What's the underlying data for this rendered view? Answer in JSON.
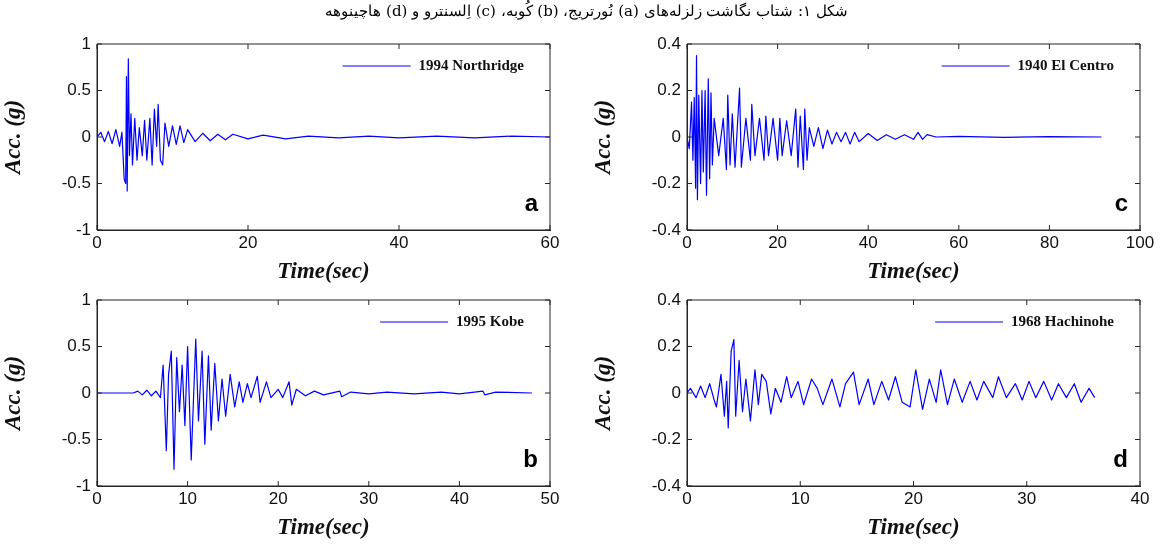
{
  "chart_data": [
    {
      "type": "line",
      "title": "شکل ۱: شتاب نگاشت زلزله‌های (a) نُورتریج، (b) کُوبه، (c) اِلسنترو و (d) هاچینوهه",
      "xlabel": "Time(sec)",
      "ylabel": "Acc. (g)",
      "xlim": [
        0,
        60
      ],
      "xticks": [
        0,
        20,
        40,
        60
      ],
      "ylim": [
        -1,
        1
      ],
      "yticks": [
        -1,
        -0.5,
        0,
        0.5,
        1
      ],
      "grid": false,
      "legend": "top right",
      "annotations": [
        "a"
      ],
      "x": [
        0,
        0.5,
        1,
        1.5,
        2,
        2.5,
        3,
        3.3,
        3.6,
        3.8,
        3.9,
        4.0,
        4.15,
        4.3,
        4.5,
        4.7,
        5,
        5.3,
        5.6,
        6,
        6.3,
        6.6,
        7,
        7.3,
        7.6,
        7.9,
        8.1,
        8.4,
        8.7,
        9,
        9.5,
        10,
        10.5,
        11,
        11.5,
        12,
        13,
        14,
        15,
        16,
        17,
        18,
        20,
        22,
        25,
        28,
        32,
        36,
        40,
        45,
        50,
        55,
        60
      ],
      "series": [
        {
          "name": "1994 Northridge",
          "color": "#0000ff",
          "values": [
            0,
            0.05,
            -0.05,
            0.06,
            -0.07,
            0.08,
            -0.1,
            0.05,
            -0.45,
            -0.5,
            0.65,
            -0.58,
            0.84,
            -0.2,
            0.25,
            -0.3,
            0.2,
            -0.25,
            0.1,
            -0.2,
            0.18,
            -0.25,
            0.2,
            -0.3,
            0.3,
            -0.1,
            0.35,
            -0.25,
            -0.3,
            0.15,
            -0.1,
            0.12,
            -0.08,
            0.12,
            -0.06,
            0.08,
            -0.05,
            0.04,
            -0.04,
            0.03,
            -0.03,
            0.03,
            -0.02,
            0.02,
            -0.02,
            0.01,
            -0.01,
            0.01,
            -0.01,
            0.01,
            -0.01,
            0.01,
            0
          ]
        }
      ]
    },
    {
      "type": "line",
      "xlabel": "Time(sec)",
      "ylabel": "Acc. (g)",
      "xlim": [
        0,
        100
      ],
      "xticks": [
        0,
        20,
        40,
        60,
        80,
        100
      ],
      "ylim": [
        -0.4,
        0.4
      ],
      "yticks": [
        -0.4,
        -0.2,
        0,
        0.2,
        0.4
      ],
      "grid": false,
      "legend": "top right",
      "annotations": [
        "c"
      ],
      "x": [
        0,
        0.5,
        1,
        1.3,
        1.6,
        1.9,
        2.1,
        2.3,
        2.6,
        3,
        3.3,
        3.6,
        4,
        4.3,
        4.7,
        5,
        5.3,
        5.6,
        6,
        7,
        8,
        8.7,
        9,
        9.5,
        10,
        10.6,
        11.6,
        12,
        13,
        14,
        14.3,
        15,
        16,
        17,
        17.4,
        18,
        19,
        20,
        20.5,
        21,
        22,
        23,
        24,
        24.5,
        25,
        25.7,
        26,
        26.5,
        27,
        28,
        29,
        30,
        31,
        32,
        33,
        34,
        35,
        36,
        37,
        38,
        40,
        42,
        44,
        46,
        48,
        50,
        51,
        52,
        53,
        55,
        60,
        70,
        80,
        91.5
      ],
      "series": [
        {
          "name": "1940 El Centro",
          "color": "#0000ff",
          "values": [
            0,
            -0.05,
            0.15,
            -0.1,
            0.17,
            -0.22,
            0.35,
            -0.27,
            0.18,
            -0.2,
            0.2,
            -0.15,
            0.2,
            -0.25,
            0.25,
            -0.18,
            0.19,
            -0.12,
            0.08,
            -0.08,
            0.08,
            -0.14,
            0.18,
            -0.12,
            0.1,
            -0.13,
            0.21,
            -0.13,
            0.08,
            -0.1,
            0.14,
            -0.08,
            0.08,
            -0.1,
            0.09,
            -0.08,
            0.08,
            -0.1,
            0.08,
            -0.08,
            0.07,
            -0.08,
            0.12,
            -0.13,
            0.09,
            -0.14,
            0.12,
            -0.1,
            0.04,
            -0.04,
            0.04,
            -0.05,
            0.03,
            -0.03,
            0.02,
            -0.02,
            0.02,
            -0.03,
            0.02,
            -0.02,
            0.015,
            -0.015,
            0.01,
            -0.01,
            0.01,
            -0.01,
            0.02,
            -0.01,
            0.01,
            0,
            0.003,
            -0.002,
            0.002,
            0
          ]
        }
      ]
    },
    {
      "type": "line",
      "xlabel": "Time(sec)",
      "ylabel": "Acc. (g)",
      "xlim": [
        0,
        50
      ],
      "xticks": [
        0,
        10,
        20,
        30,
        40,
        50
      ],
      "ylim": [
        -1,
        1
      ],
      "yticks": [
        -1,
        -0.5,
        0,
        0.5,
        1
      ],
      "grid": false,
      "legend": "top right",
      "annotations": [
        "b"
      ],
      "x": [
        0,
        4,
        4.5,
        5,
        5.5,
        6,
        6.5,
        7,
        7.3,
        7.65,
        7.9,
        8.2,
        8.5,
        8.8,
        9.1,
        9.4,
        9.7,
        10,
        10.4,
        10.9,
        11.2,
        11.6,
        11.9,
        12.3,
        12.6,
        13,
        13.4,
        13.8,
        14.2,
        14.7,
        15.2,
        15.7,
        16.1,
        16.6,
        17,
        17.7,
        18,
        18.7,
        19.2,
        20,
        20.5,
        21.2,
        21.5,
        22,
        23,
        24,
        25,
        26.8,
        27,
        28,
        30,
        32,
        35,
        38,
        40,
        42.6,
        42.8,
        44,
        48
      ],
      "series": [
        {
          "name": "1995 Kobe",
          "color": "#0000ff",
          "values": [
            0,
            0,
            0.02,
            -0.02,
            0.03,
            -0.03,
            0.02,
            -0.05,
            0.3,
            -0.62,
            0.2,
            0.45,
            -0.82,
            0.38,
            -0.2,
            0.3,
            -0.35,
            0.5,
            -0.72,
            0.58,
            -0.3,
            0.45,
            -0.55,
            0.4,
            -0.4,
            0.32,
            -0.3,
            0.15,
            -0.25,
            0.2,
            -0.15,
            0.12,
            -0.1,
            0.1,
            -0.05,
            0.18,
            -0.1,
            0.12,
            -0.05,
            0.04,
            -0.05,
            0.12,
            -0.13,
            0.04,
            -0.03,
            0.02,
            -0.02,
            0.02,
            -0.04,
            0.01,
            -0.01,
            0.01,
            -0.01,
            0.01,
            -0.01,
            0.02,
            -0.02,
            0.01,
            0
          ]
        }
      ]
    },
    {
      "type": "line",
      "xlabel": "Time(sec)",
      "ylabel": "Acc. (g)",
      "xlim": [
        0,
        40
      ],
      "xticks": [
        0,
        10,
        20,
        30,
        40
      ],
      "ylim": [
        -0.4,
        0.4
      ],
      "yticks": [
        -0.4,
        -0.2,
        0,
        0.2,
        0.4
      ],
      "grid": false,
      "legend": "top right",
      "annotations": [
        "d"
      ],
      "x": [
        0,
        0.3,
        0.8,
        1.2,
        1.6,
        2,
        2.4,
        2.6,
        3,
        3.3,
        3.5,
        3.64,
        3.9,
        4.14,
        4.3,
        4.6,
        4.9,
        5.2,
        5.6,
        6,
        6.3,
        6.6,
        7,
        7.4,
        7.8,
        8.3,
        8.8,
        9.2,
        9.8,
        10.3,
        11,
        11.5,
        12,
        12.8,
        13.5,
        14,
        14.7,
        15.2,
        16,
        16.5,
        17.2,
        17.8,
        18.4,
        19,
        19.7,
        20.2,
        20.8,
        21.4,
        22,
        22.4,
        23,
        23.6,
        24.3,
        25,
        25.6,
        26.2,
        27,
        27.5,
        28.2,
        29,
        29.6,
        30.2,
        30.8,
        31.5,
        32.2,
        32.8,
        33.5,
        34.2,
        34.8,
        35.5,
        36
      ],
      "series": [
        {
          "name": "1968 Hachinohe",
          "color": "#0000ff",
          "values": [
            0,
            0.02,
            -0.02,
            0.03,
            -0.02,
            0.04,
            -0.03,
            -0.06,
            0.08,
            -0.1,
            0.05,
            -0.15,
            0.18,
            0.23,
            -0.1,
            0.14,
            -0.08,
            0.06,
            -0.12,
            0.1,
            -0.05,
            0.08,
            0.05,
            -0.09,
            0.02,
            -0.04,
            0.07,
            -0.02,
            0.05,
            -0.05,
            0.06,
            0.02,
            -0.05,
            0.06,
            -0.06,
            0.04,
            0.09,
            -0.05,
            0.06,
            -0.05,
            0.05,
            -0.03,
            0.07,
            -0.04,
            -0.06,
            0.1,
            -0.07,
            0.06,
            -0.04,
            0.1,
            -0.05,
            0.06,
            -0.04,
            0.05,
            -0.03,
            0.05,
            -0.02,
            0.07,
            -0.02,
            0.04,
            -0.03,
            0.05,
            -0.02,
            0.05,
            -0.03,
            0.04,
            -0.02,
            0.04,
            -0.04,
            0.02,
            -0.02
          ]
        }
      ]
    }
  ]
}
